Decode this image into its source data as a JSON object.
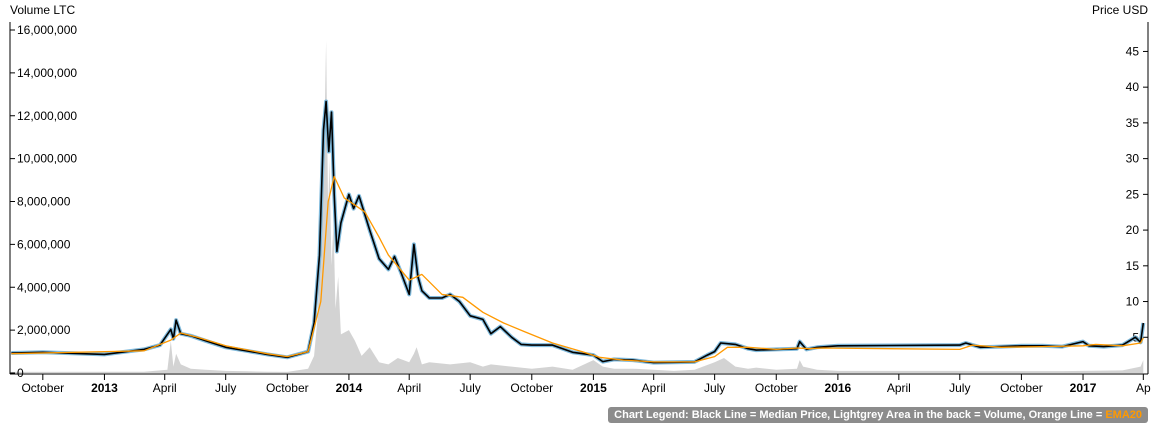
{
  "chart_data": {
    "type": "line",
    "left_axis_title": "Volume LTC",
    "right_axis_title": "Price USD",
    "left_ticks": [
      "0",
      "2,000,000",
      "4,000,000",
      "6,000,000",
      "8,000,000",
      "10,000,000",
      "12,000,000",
      "14,000,000",
      "16,000,000"
    ],
    "right_ticks": [
      "5",
      "10",
      "15",
      "20",
      "25",
      "30",
      "35",
      "40",
      "45"
    ],
    "x_ticks": [
      "October",
      "2013",
      "April",
      "July",
      "October",
      "2014",
      "April",
      "July",
      "October",
      "2015",
      "April",
      "July",
      "October",
      "2016",
      "April",
      "July",
      "October",
      "2017",
      "Ap"
    ],
    "x_tick_bold": [
      "2013",
      "2014",
      "2015",
      "2016",
      "2017"
    ],
    "ylim_volume": [
      0,
      16000000
    ],
    "ylim_price": [
      0,
      48
    ],
    "series": [
      {
        "name": "Median Price",
        "color": "#000000",
        "x": [
          "2012-08-15",
          "2012-10-01",
          "2013-01-01",
          "2013-03-01",
          "2013-03-25",
          "2013-04-10",
          "2013-04-14",
          "2013-04-18",
          "2013-04-25",
          "2013-05-10",
          "2013-06-01",
          "2013-07-01",
          "2013-08-01",
          "2013-09-01",
          "2013-10-01",
          "2013-11-01",
          "2013-11-10",
          "2013-11-18",
          "2013-11-24",
          "2013-11-28",
          "2013-12-02",
          "2013-12-06",
          "2013-12-10",
          "2013-12-14",
          "2013-12-20",
          "2014-01-01",
          "2014-01-08",
          "2014-01-16",
          "2014-02-01",
          "2014-02-15",
          "2014-03-01",
          "2014-03-10",
          "2014-03-20",
          "2014-04-01",
          "2014-04-08",
          "2014-04-14",
          "2014-04-20",
          "2014-05-01",
          "2014-05-20",
          "2014-06-01",
          "2014-06-15",
          "2014-07-01",
          "2014-07-20",
          "2014-08-01",
          "2014-08-15",
          "2014-09-01",
          "2014-09-15",
          "2014-10-01",
          "2014-11-01",
          "2014-12-01",
          "2015-01-01",
          "2015-01-15",
          "2015-02-01",
          "2015-03-01",
          "2015-04-01",
          "2015-05-01",
          "2015-06-01",
          "2015-06-20",
          "2015-07-01",
          "2015-07-10",
          "2015-08-01",
          "2015-08-20",
          "2015-09-01",
          "2015-10-01",
          "2015-11-01",
          "2015-11-05",
          "2015-11-15",
          "2015-12-01",
          "2016-01-01",
          "2016-07-01",
          "2016-07-10",
          "2016-08-01",
          "2016-09-01",
          "2016-10-01",
          "2016-11-01",
          "2016-12-01",
          "2017-01-01",
          "2017-01-10",
          "2017-02-01",
          "2017-03-01",
          "2017-03-20",
          "2017-03-28",
          "2017-04-01"
        ],
        "values": [
          2.8,
          2.9,
          2.6,
          3.3,
          3.9,
          6.1,
          4.8,
          7.4,
          5.5,
          5.2,
          4.5,
          3.6,
          3.1,
          2.6,
          2.2,
          3.0,
          7.0,
          16.5,
          34.0,
          38.0,
          31.0,
          36.5,
          25.0,
          17.0,
          21.0,
          25.0,
          23.0,
          24.8,
          20.0,
          16.0,
          14.5,
          16.3,
          14.0,
          11.0,
          18.0,
          13.5,
          11.5,
          10.5,
          10.5,
          11.0,
          10.0,
          8.0,
          7.5,
          5.5,
          6.5,
          5.0,
          4.0,
          3.9,
          3.9,
          2.9,
          2.5,
          1.6,
          1.9,
          1.8,
          1.45,
          1.5,
          1.55,
          2.5,
          3.0,
          4.2,
          4.0,
          3.4,
          3.2,
          3.3,
          3.4,
          4.4,
          3.3,
          3.6,
          3.8,
          3.9,
          4.2,
          3.6,
          3.7,
          3.8,
          3.8,
          3.7,
          4.4,
          3.8,
          3.7,
          3.9,
          5.0,
          4.3,
          7.0
        ]
      },
      {
        "name": "EMA20",
        "color": "#ff9900",
        "x": [
          "2012-08-15",
          "2013-03-01",
          "2013-04-10",
          "2013-04-25",
          "2013-05-20",
          "2013-07-01",
          "2013-09-01",
          "2013-10-01",
          "2013-11-01",
          "2013-11-20",
          "2013-12-01",
          "2013-12-10",
          "2013-12-25",
          "2014-01-10",
          "2014-01-25",
          "2014-02-15",
          "2014-03-01",
          "2014-04-01",
          "2014-04-20",
          "2014-05-20",
          "2014-06-20",
          "2014-07-20",
          "2014-08-20",
          "2014-09-20",
          "2014-11-01",
          "2014-12-15",
          "2015-01-10",
          "2015-02-15",
          "2015-04-01",
          "2015-06-01",
          "2015-07-01",
          "2015-07-20",
          "2015-08-20",
          "2015-10-01",
          "2015-11-01",
          "2015-11-20",
          "2015-12-10",
          "2016-07-01",
          "2016-07-20",
          "2016-09-01",
          "2016-11-01",
          "2017-01-01",
          "2017-01-20",
          "2017-03-01",
          "2017-03-28",
          "2017-04-01"
        ],
        "values": [
          2.7,
          3.1,
          4.6,
          5.6,
          5.0,
          3.8,
          2.7,
          2.3,
          3.0,
          10.0,
          24.0,
          27.5,
          24.5,
          23.5,
          22.5,
          19.0,
          16.5,
          13.0,
          13.8,
          11.0,
          10.6,
          8.5,
          7.0,
          5.8,
          4.2,
          3.0,
          2.2,
          1.8,
          1.55,
          1.55,
          2.3,
          3.6,
          3.6,
          3.3,
          3.5,
          3.4,
          3.5,
          3.3,
          3.9,
          3.6,
          3.7,
          3.8,
          4.0,
          3.8,
          4.2,
          4.9
        ]
      }
    ],
    "volume": {
      "name": "Volume",
      "color": "#d3d3d3",
      "x": [
        "2012-08-15",
        "2013-03-01",
        "2013-04-05",
        "2013-04-10",
        "2013-04-14",
        "2013-04-18",
        "2013-04-25",
        "2013-05-10",
        "2013-06-01",
        "2013-07-01",
        "2013-08-01",
        "2013-09-01",
        "2013-10-01",
        "2013-11-01",
        "2013-11-10",
        "2013-11-15",
        "2013-11-20",
        "2013-11-24",
        "2013-11-28",
        "2013-12-01",
        "2013-12-03",
        "2013-12-06",
        "2013-12-09",
        "2013-12-12",
        "2013-12-16",
        "2013-12-20",
        "2014-01-01",
        "2014-01-10",
        "2014-01-20",
        "2014-02-01",
        "2014-02-15",
        "2014-03-01",
        "2014-03-15",
        "2014-04-01",
        "2014-04-08",
        "2014-04-12",
        "2014-04-20",
        "2014-05-01",
        "2014-06-01",
        "2014-07-01",
        "2014-07-20",
        "2014-08-01",
        "2014-09-01",
        "2014-10-01",
        "2014-11-01",
        "2014-12-01",
        "2015-01-01",
        "2015-01-15",
        "2015-02-01",
        "2015-03-01",
        "2015-04-01",
        "2015-05-01",
        "2015-06-01",
        "2015-07-01",
        "2015-07-15",
        "2015-08-01",
        "2015-08-20",
        "2015-09-01",
        "2015-10-01",
        "2015-11-01",
        "2015-11-05",
        "2015-11-10",
        "2015-12-01",
        "2016-01-01",
        "2016-07-01",
        "2016-08-01",
        "2016-10-01",
        "2016-12-01",
        "2017-01-01",
        "2017-03-01",
        "2017-03-28",
        "2017-04-01"
      ],
      "values": [
        50000,
        60000,
        150000,
        1500000,
        300000,
        900000,
        400000,
        200000,
        150000,
        100000,
        80000,
        60000,
        50000,
        200000,
        800000,
        2500000,
        6000000,
        9000000,
        15500000,
        7500000,
        10000000,
        5000000,
        7000000,
        3000000,
        4500000,
        1800000,
        2000000,
        1500000,
        800000,
        1200000,
        500000,
        400000,
        700000,
        500000,
        900000,
        1200000,
        400000,
        500000,
        400000,
        500000,
        300000,
        400000,
        300000,
        200000,
        300000,
        150000,
        600000,
        300000,
        200000,
        200000,
        150000,
        100000,
        150000,
        500000,
        700000,
        300000,
        200000,
        250000,
        150000,
        200000,
        600000,
        300000,
        150000,
        100000,
        100000,
        90000,
        90000,
        90000,
        100000,
        120000,
        300000,
        600000
      ]
    }
  },
  "legend": {
    "text": "Chart Legend: Black Line = Median Price, Lightgrey Area in the back = Volume, Orange Line = ",
    "ema_label": "EMA20"
  }
}
